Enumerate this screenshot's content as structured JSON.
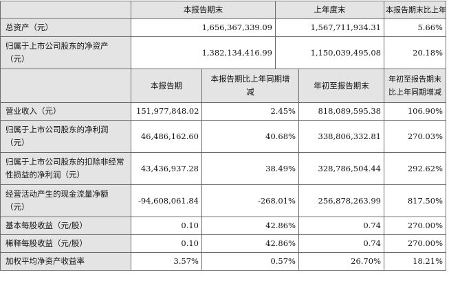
{
  "table1": {
    "headers": [
      "",
      "本报告期末",
      "上年度末",
      "本报告期末比上年度末增减"
    ],
    "rows": [
      {
        "label": "总资产（元）",
        "values": [
          "1,656,367,339.09",
          "1,567,711,934.31",
          "5.66%"
        ]
      },
      {
        "label": "归属于上市公司股东的净资产（元）",
        "values": [
          "1,382,134,416.99",
          "1,150,039,495.08",
          "20.18%"
        ]
      }
    ]
  },
  "table2": {
    "headers": [
      "",
      "本报告期",
      "本报告期比上年同期增减",
      "年初至报告期末",
      "年初至报告期末比上年同期增减"
    ],
    "rows": [
      {
        "label": "营业收入（元）",
        "values": [
          "151,977,848.02",
          "2.45%",
          "818,089,595.38",
          "106.90%"
        ]
      },
      {
        "label": "归属于上市公司股东的净利润（元）",
        "values": [
          "46,486,162.60",
          "40.68%",
          "338,806,332.81",
          "270.03%"
        ]
      },
      {
        "label": "归属于上市公司股东的扣除非经常性损益的净利润（元）",
        "values": [
          "43,436,937.28",
          "38.49%",
          "328,786,504.44",
          "292.62%"
        ]
      },
      {
        "label": "经营活动产生的现金流量净额（元）",
        "values": [
          "-94,608,061.84",
          "-268.01%",
          "256,878,263.99",
          "817.50%"
        ]
      },
      {
        "label": "基本每股收益（元/股）",
        "values": [
          "0.10",
          "42.86%",
          "0.74",
          "270.00%"
        ]
      },
      {
        "label": "稀释每股收益（元/股）",
        "values": [
          "0.10",
          "42.86%",
          "0.74",
          "270.00%"
        ]
      },
      {
        "label": "加权平均净资产收益率",
        "values": [
          "3.57%",
          "0.57%",
          "26.70%",
          "18.21%"
        ]
      }
    ]
  }
}
